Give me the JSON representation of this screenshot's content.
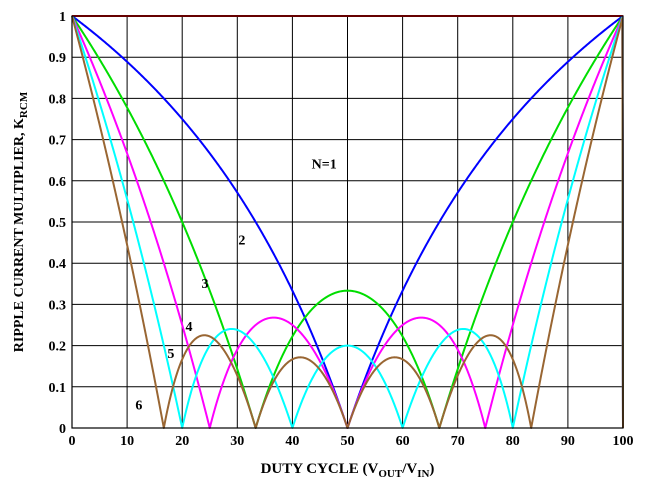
{
  "chart_data": {
    "type": "line",
    "title": "",
    "xlabel": {
      "main": "DUTY CYCLE (V",
      "sub1": "OUT",
      "mid": "/V",
      "sub2": "IN",
      "end": ")"
    },
    "ylabel": {
      "main": "RIPPLE CURRENT MULTIPLIER, K",
      "sub": "RCM"
    },
    "xlim": [
      0,
      100
    ],
    "ylim": [
      0,
      1
    ],
    "x_ticks": [
      "0",
      "10",
      "20",
      "30",
      "40",
      "50",
      "60",
      "70",
      "80",
      "90",
      "100"
    ],
    "y_ticks": [
      "0",
      "0.1",
      "0.2",
      "0.3",
      "0.4",
      "0.5",
      "0.6",
      "0.7",
      "0.8",
      "0.9",
      "1"
    ],
    "grid": true,
    "series": [
      {
        "name": "N=1",
        "phases": 1,
        "color": "#ff0000"
      },
      {
        "name": "2",
        "phases": 2,
        "color": "#0000ff"
      },
      {
        "name": "3",
        "phases": 3,
        "color": "#00dd00"
      },
      {
        "name": "4",
        "phases": 4,
        "color": "#ff00ff"
      },
      {
        "name": "5",
        "phases": 5,
        "color": "#00ffff"
      },
      {
        "name": "6",
        "phases": 6,
        "color": "#996633"
      }
    ],
    "annotations": [
      {
        "text": "N=1",
        "x": 43.5,
        "y": 0.63
      },
      {
        "text": "2",
        "x": 30.2,
        "y": 0.445
      },
      {
        "text": "3",
        "x": 23.5,
        "y": 0.34
      },
      {
        "text": "4",
        "x": 20.6,
        "y": 0.236
      },
      {
        "text": "5",
        "x": 17.3,
        "y": 0.17
      },
      {
        "text": "6",
        "x": 11.5,
        "y": 0.045
      }
    ]
  }
}
